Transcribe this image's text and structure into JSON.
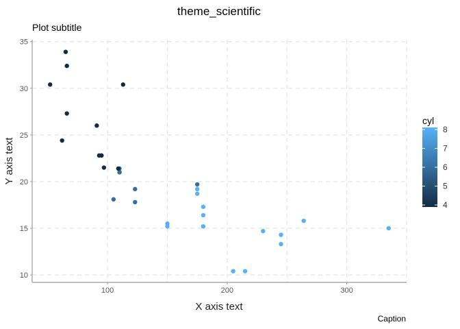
{
  "chart_data": {
    "type": "scatter",
    "title": "theme_scientific",
    "subtitle": "Plot subtitle",
    "caption": "Caption",
    "xlabel": "X axis text",
    "ylabel": "Y axis text",
    "xlim": [
      37,
      350
    ],
    "ylim": [
      9.2,
      35.2
    ],
    "xticks": [
      100,
      200,
      300
    ],
    "yticks": [
      10,
      15,
      20,
      25,
      30,
      35
    ],
    "grid": true,
    "legend": {
      "title": "cyl",
      "position": "right",
      "ticks": [
        4,
        5,
        6,
        7,
        8
      ],
      "range": [
        4,
        8
      ],
      "low_color": "#132B43",
      "high_color": "#56B1F7"
    },
    "points": [
      {
        "x": 110,
        "y": 21.0,
        "cyl": 6
      },
      {
        "x": 110,
        "y": 21.0,
        "cyl": 6
      },
      {
        "x": 93,
        "y": 22.8,
        "cyl": 4
      },
      {
        "x": 110,
        "y": 21.4,
        "cyl": 6
      },
      {
        "x": 175,
        "y": 18.7,
        "cyl": 8
      },
      {
        "x": 105,
        "y": 18.1,
        "cyl": 6
      },
      {
        "x": 245,
        "y": 14.3,
        "cyl": 8
      },
      {
        "x": 62,
        "y": 24.4,
        "cyl": 4
      },
      {
        "x": 95,
        "y": 22.8,
        "cyl": 4
      },
      {
        "x": 123,
        "y": 19.2,
        "cyl": 6
      },
      {
        "x": 123,
        "y": 17.8,
        "cyl": 6
      },
      {
        "x": 180,
        "y": 16.4,
        "cyl": 8
      },
      {
        "x": 180,
        "y": 17.3,
        "cyl": 8
      },
      {
        "x": 180,
        "y": 15.2,
        "cyl": 8
      },
      {
        "x": 205,
        "y": 10.4,
        "cyl": 8
      },
      {
        "x": 215,
        "y": 10.4,
        "cyl": 8
      },
      {
        "x": 230,
        "y": 14.7,
        "cyl": 8
      },
      {
        "x": 66,
        "y": 32.4,
        "cyl": 4
      },
      {
        "x": 52,
        "y": 30.4,
        "cyl": 4
      },
      {
        "x": 65,
        "y": 33.9,
        "cyl": 4
      },
      {
        "x": 97,
        "y": 21.5,
        "cyl": 4
      },
      {
        "x": 150,
        "y": 15.5,
        "cyl": 8
      },
      {
        "x": 150,
        "y": 15.2,
        "cyl": 8
      },
      {
        "x": 245,
        "y": 13.3,
        "cyl": 8
      },
      {
        "x": 175,
        "y": 19.2,
        "cyl": 8
      },
      {
        "x": 66,
        "y": 27.3,
        "cyl": 4
      },
      {
        "x": 91,
        "y": 26.0,
        "cyl": 4
      },
      {
        "x": 113,
        "y": 30.4,
        "cyl": 4
      },
      {
        "x": 264,
        "y": 15.8,
        "cyl": 8
      },
      {
        "x": 175,
        "y": 19.7,
        "cyl": 6
      },
      {
        "x": 335,
        "y": 15.0,
        "cyl": 8
      },
      {
        "x": 109,
        "y": 21.4,
        "cyl": 4
      }
    ]
  }
}
